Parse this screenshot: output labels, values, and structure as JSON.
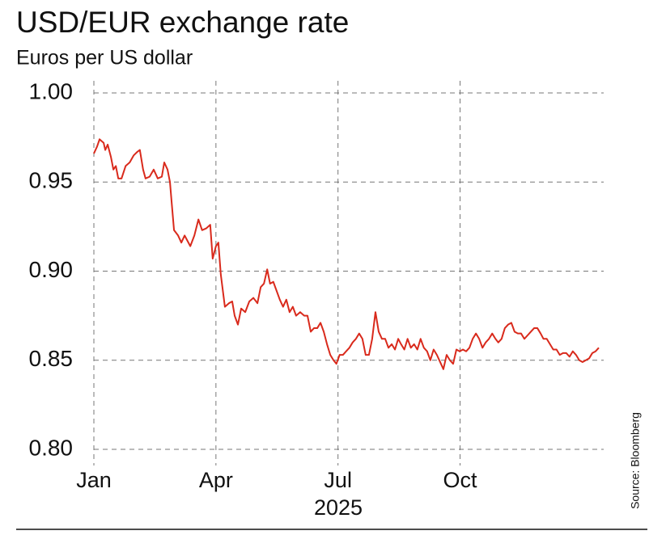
{
  "chart_data": {
    "type": "line",
    "title": "USD/EUR exchange rate",
    "subtitle": "Euros per US dollar",
    "xlabel": "2025",
    "source": "Source: Bloomberg",
    "color": "#d92a1c",
    "grid": true,
    "xlim": [
      0,
      12.45
    ],
    "xticks": [
      {
        "value": 0,
        "label": "Jan"
      },
      {
        "value": 3,
        "label": "Apr"
      },
      {
        "value": 6,
        "label": "Jul"
      },
      {
        "value": 9,
        "label": "Oct"
      }
    ],
    "ylim": [
      0.8,
      1.0
    ],
    "yticks": [
      {
        "value": 0.8,
        "label": "0.80"
      },
      {
        "value": 0.85,
        "label": "0.85"
      },
      {
        "value": 0.9,
        "label": "0.90"
      },
      {
        "value": 0.95,
        "label": "0.95"
      },
      {
        "value": 1.0,
        "label": "1.00"
      }
    ],
    "x": [
      0,
      0.08,
      0.14,
      0.24,
      0.28,
      0.34,
      0.42,
      0.48,
      0.54,
      0.6,
      0.68,
      0.78,
      0.88,
      0.98,
      1.07,
      1.13,
      1.21,
      1.27,
      1.37,
      1.47,
      1.57,
      1.67,
      1.73,
      1.81,
      1.87,
      1.91,
      1.97,
      2.07,
      2.15,
      2.23,
      2.37,
      2.47,
      2.57,
      2.66,
      2.76,
      2.86,
      2.92,
      3.0,
      3.06,
      3.12,
      3.22,
      3.32,
      3.4,
      3.46,
      3.54,
      3.62,
      3.72,
      3.82,
      3.92,
      4.02,
      4.1,
      4.18,
      4.26,
      4.33,
      4.41,
      4.49,
      4.57,
      4.65,
      4.73,
      4.81,
      4.89,
      4.97,
      5.07,
      5.17,
      5.25,
      5.33,
      5.41,
      5.49,
      5.57,
      5.65,
      5.73,
      5.81,
      5.89,
      5.96,
      6.04,
      6.12,
      6.2,
      6.28,
      6.36,
      6.44,
      6.52,
      6.6,
      6.68,
      6.76,
      6.84,
      6.92,
      7.0,
      7.08,
      7.16,
      7.24,
      7.32,
      7.4,
      7.48,
      7.55,
      7.63,
      7.71,
      7.79,
      7.87,
      7.95,
      8.03,
      8.11,
      8.19,
      8.27,
      8.35,
      8.43,
      8.51,
      8.59,
      8.67,
      8.75,
      8.83,
      8.91,
      8.99,
      9.07,
      9.15,
      9.23,
      9.31,
      9.39,
      9.47,
      9.55,
      9.63,
      9.71,
      9.79,
      9.87,
      9.94,
      10.02,
      10.1,
      10.18,
      10.26,
      10.34,
      10.42,
      10.5,
      10.58,
      10.66,
      10.74,
      10.82,
      10.9,
      10.98,
      11.05,
      11.13,
      11.21,
      11.29,
      11.37,
      11.45,
      11.53,
      11.61,
      11.69,
      11.77,
      11.85,
      11.93,
      12.01,
      12.09,
      12.17,
      12.25,
      12.33,
      12.41
    ],
    "values": [
      0.966,
      0.97,
      0.974,
      0.972,
      0.968,
      0.971,
      0.964,
      0.957,
      0.959,
      0.952,
      0.952,
      0.959,
      0.961,
      0.965,
      0.967,
      0.968,
      0.957,
      0.952,
      0.953,
      0.957,
      0.952,
      0.953,
      0.961,
      0.957,
      0.95,
      0.939,
      0.923,
      0.92,
      0.916,
      0.92,
      0.914,
      0.92,
      0.929,
      0.923,
      0.924,
      0.926,
      0.907,
      0.914,
      0.916,
      0.898,
      0.88,
      0.882,
      0.883,
      0.875,
      0.87,
      0.879,
      0.877,
      0.883,
      0.885,
      0.882,
      0.891,
      0.893,
      0.901,
      0.893,
      0.894,
      0.889,
      0.884,
      0.88,
      0.884,
      0.877,
      0.88,
      0.875,
      0.877,
      0.875,
      0.875,
      0.866,
      0.868,
      0.868,
      0.871,
      0.866,
      0.859,
      0.853,
      0.85,
      0.848,
      0.853,
      0.853,
      0.855,
      0.857,
      0.86,
      0.862,
      0.865,
      0.862,
      0.853,
      0.853,
      0.862,
      0.877,
      0.866,
      0.862,
      0.862,
      0.857,
      0.859,
      0.856,
      0.862,
      0.859,
      0.856,
      0.862,
      0.857,
      0.859,
      0.856,
      0.862,
      0.857,
      0.855,
      0.85,
      0.856,
      0.853,
      0.849,
      0.845,
      0.853,
      0.85,
      0.848,
      0.856,
      0.855,
      0.856,
      0.855,
      0.857,
      0.862,
      0.865,
      0.862,
      0.857,
      0.86,
      0.862,
      0.865,
      0.862,
      0.86,
      0.862,
      0.868,
      0.87,
      0.871,
      0.866,
      0.865,
      0.865,
      0.862,
      0.864,
      0.866,
      0.868,
      0.868,
      0.865,
      0.862,
      0.862,
      0.859,
      0.856,
      0.856,
      0.853,
      0.854,
      0.854,
      0.852,
      0.855,
      0.853,
      0.85,
      0.849,
      0.85,
      0.851,
      0.854,
      0.855,
      0.857
    ]
  }
}
